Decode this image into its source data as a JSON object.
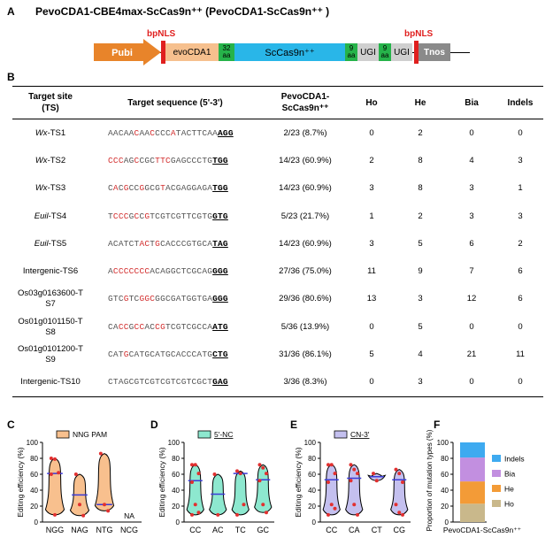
{
  "panelA": {
    "label": "A",
    "title": "PevoCDA1-CBE4max-ScCas9n⁺⁺ (PevoCDA1-ScCas9n⁺⁺ )",
    "bpnls_left": "bpNLS",
    "bpnls_right": "bpNLS",
    "blocks": {
      "pubi": "Pubi",
      "evocda1": "evoCDA1",
      "linker1": "32 aa",
      "cas9": "ScCas9n⁺⁺",
      "linker2": "9 aa",
      "ugi1": "UGI",
      "linker3": "9 aa",
      "ugi2": "UGI",
      "tnos": "Tnos"
    },
    "colors": {
      "pubi": "#e8842a",
      "evocda1": "#f6c08e",
      "linker": "#26b34a",
      "cas9": "#29b6e8",
      "ugi": "#cfcfcf",
      "nls": "#e0201f",
      "tnos": "#8a8a8a"
    }
  },
  "panelB": {
    "label": "B",
    "headers": [
      "Target site (TS)",
      "Target sequence (5'-3')",
      "PevoCDA1-ScCas9n⁺⁺",
      "Ho",
      "He",
      "Bia",
      "Indels"
    ],
    "rows": [
      {
        "ts_italic": "Wx",
        "ts_rest": "-TS1",
        "seq": [
          [
            "AACAACAACCCCATACTTCAA",
            ""
          ]
        ],
        "pam": "AGG",
        "rate": "2/23 (8.7%)",
        "ho": "0",
        "he": "2",
        "bia": "0",
        "indels": "0"
      },
      {
        "ts_italic": "Wx",
        "ts_rest": "-TS2",
        "pam": "TGG",
        "rate": "14/23 (60.9%)",
        "ho": "2",
        "he": "8",
        "bia": "4",
        "indels": "3"
      },
      {
        "ts_italic": "Wx",
        "ts_rest": "-TS3",
        "pam": "TGG",
        "rate": "14/23 (60.9%)",
        "ho": "3",
        "he": "8",
        "bia": "3",
        "indels": "1"
      },
      {
        "ts_italic": "Euil",
        "ts_rest": "-TS4",
        "pam": "GTG",
        "rate": "5/23 (21.7%)",
        "ho": "1",
        "he": "2",
        "bia": "3",
        "indels": "3"
      },
      {
        "ts_italic": "Euil",
        "ts_rest": "-TS5",
        "pam": "TAG",
        "rate": "14/23 (60.9%)",
        "ho": "3",
        "he": "5",
        "bia": "6",
        "indels": "2"
      },
      {
        "ts_italic": "",
        "ts_rest": "Intergenic-TS6",
        "pam": "GGG",
        "rate": "27/36 (75.0%)",
        "ho": "11",
        "he": "9",
        "bia": "7",
        "indels": "6"
      },
      {
        "ts_italic": "",
        "ts_rest": "Os03g0163600-TS7",
        "pam": "GGG",
        "rate": "29/36 (80.6%)",
        "ho": "13",
        "he": "3",
        "bia": "12",
        "indels": "6"
      },
      {
        "ts_italic": "",
        "ts_rest": "Os01g0101150-TS8",
        "pam": "ATG",
        "rate": "5/36 (13.9%)",
        "ho": "0",
        "he": "5",
        "bia": "0",
        "indels": "0"
      },
      {
        "ts_italic": "",
        "ts_rest": "Os01g0101200-TS9",
        "pam": "CTG",
        "rate": "31/36 (86.1%)",
        "ho": "5",
        "he": "4",
        "bia": "21",
        "indels": "11"
      },
      {
        "ts_italic": "",
        "ts_rest": "Intergenic-TS10",
        "pam": "GAG",
        "rate": "3/36 (8.3%)",
        "ho": "0",
        "he": "3",
        "bia": "0",
        "indels": "0"
      }
    ],
    "seqs": [
      "AACAACAACCCCATACTTCAA",
      "CCCAGCCGCTTCGAGCCCTG",
      "CACGCCGGCGTACGAGGAGA",
      "TCCCGCCGTCGTCGTTCGTG",
      "ACATCTACTGCACCCGTGCA",
      "ACCCCCCCACAGGCTCGCAG",
      "GTCGTCGGCGGCGATGGTGA",
      "CACCGCCACCGTCGTCGCCA",
      "CATGCATGCATGCACCCATG",
      "CTAGCGTCGTCGTCGTCGCT"
    ]
  },
  "panelC": {
    "label": "C",
    "legend": "NNG PAM",
    "ylabel": "Editing efficiency (%)",
    "categories": [
      "NGG",
      "NAG",
      "NTG",
      "NCG"
    ],
    "na_label": "NA",
    "color": "#f8c08e"
  },
  "panelD": {
    "label": "D",
    "legend": "5'-NC",
    "ylabel": "Editing efficiency (%)",
    "categories": [
      "CC",
      "AC",
      "TC",
      "GC"
    ],
    "color": "#8de8cf"
  },
  "panelE": {
    "label": "E",
    "legend": "CN-3'",
    "ylabel": "Editing efficiency (%)",
    "categories": [
      "CC",
      "CA",
      "CT",
      "CG"
    ],
    "color": "#c4c0ef"
  },
  "panelF": {
    "label": "F",
    "ylabel": "Proportion of mutation types (%)",
    "xlabel": "PevoCDA1-ScCas9n⁺⁺",
    "legend": [
      "Indels",
      "Bia",
      "He",
      "Ho"
    ]
  },
  "axis_ticks": [
    "0",
    "20",
    "40",
    "60",
    "80",
    "100"
  ],
  "chart_data": [
    {
      "type": "violin",
      "title": "",
      "legend": [
        "NNG PAM"
      ],
      "ylabel": "Editing efficiency (%)",
      "ylim": [
        0,
        100
      ],
      "categories": [
        "NGG",
        "NAG",
        "NTG",
        "NCG"
      ],
      "series": [
        {
          "category": "NGG",
          "points": [
            80,
            79,
            62,
            60,
            9
          ],
          "median": 61
        },
        {
          "category": "NAG",
          "points": [
            60,
            22,
            8
          ],
          "median": 34
        },
        {
          "category": "NTG",
          "points": [
            86,
            22,
            14
          ],
          "median": 22
        },
        {
          "category": "NCG",
          "points": [],
          "median": null,
          "note": "NA"
        }
      ]
    },
    {
      "type": "violin",
      "title": "",
      "legend": [
        "5'-NC"
      ],
      "ylabel": "Editing efficiency (%)",
      "ylim": [
        0,
        100
      ],
      "categories": [
        "CC",
        "AC",
        "TC",
        "GC"
      ],
      "series": [
        {
          "category": "CC",
          "points": [
            72,
            72,
            61,
            50,
            22,
            12,
            9
          ],
          "median": 52
        },
        {
          "category": "AC",
          "points": [
            60,
            9
          ],
          "median": 35
        },
        {
          "category": "TC",
          "points": [
            64,
            61,
            22,
            9
          ],
          "median": 61
        },
        {
          "category": "GC",
          "points": [
            72,
            68,
            61,
            52,
            22,
            12
          ],
          "median": 53
        }
      ]
    },
    {
      "type": "violin",
      "title": "",
      "legend": [
        "CN-3'"
      ],
      "ylabel": "Editing efficiency (%)",
      "ylim": [
        0,
        100
      ],
      "categories": [
        "CC",
        "CA",
        "CT",
        "CG"
      ],
      "series": [
        {
          "category": "CC",
          "points": [
            72,
            72,
            61,
            50,
            22,
            17,
            9
          ],
          "median": 53
        },
        {
          "category": "CA",
          "points": [
            72,
            66,
            61,
            52,
            22,
            9
          ],
          "median": 55
        },
        {
          "category": "CT",
          "points": [
            61,
            52
          ],
          "median": 57
        },
        {
          "category": "CG",
          "points": [
            66,
            61,
            50,
            22,
            12,
            9
          ],
          "median": 53
        }
      ]
    },
    {
      "type": "stacked-bar",
      "title": "",
      "ylabel": "Proportion of mutation types (%)",
      "ylim": [
        0,
        100
      ],
      "categories": [
        "PevoCDA1-ScCas9n⁺⁺"
      ],
      "series": [
        {
          "name": "Ho",
          "values": [
            23
          ],
          "color": "#c9b88b"
        },
        {
          "name": "He",
          "values": [
            28
          ],
          "color": "#f39b37"
        },
        {
          "name": "Bia",
          "values": [
            30
          ],
          "color": "#c28fe0"
        },
        {
          "name": "Indels",
          "values": [
            19
          ],
          "color": "#3eaaf0"
        }
      ]
    }
  ]
}
